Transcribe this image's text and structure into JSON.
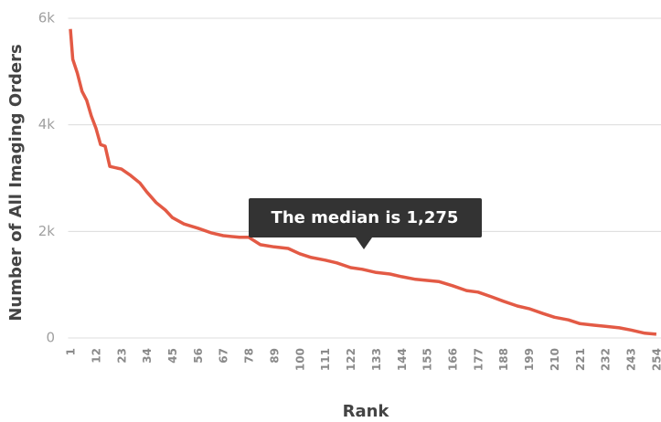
{
  "chart_data": {
    "type": "line",
    "x_label": "Rank",
    "y_label": "Number of All Imaging Orders",
    "annotation": "The median is 1,275",
    "color": "#e35a45",
    "grid": true,
    "x": [
      1,
      2,
      4,
      6,
      8,
      10,
      12,
      14,
      16,
      18,
      23,
      27,
      31,
      34,
      38,
      42,
      45,
      50,
      56,
      62,
      67,
      74,
      78,
      83,
      89,
      95,
      100,
      105,
      111,
      116,
      122,
      127,
      133,
      139,
      144,
      150,
      160,
      166,
      172,
      177,
      183,
      188,
      194,
      199,
      205,
      210,
      216,
      221,
      227,
      232,
      238,
      243,
      249,
      254
    ],
    "values": [
      5800,
      5230,
      4970,
      4630,
      4460,
      4170,
      3940,
      3630,
      3600,
      3220,
      3170,
      3050,
      2910,
      2740,
      2540,
      2400,
      2260,
      2140,
      2060,
      1970,
      1920,
      1890,
      1890,
      1750,
      1710,
      1680,
      1580,
      1510,
      1460,
      1410,
      1320,
      1290,
      1230,
      1200,
      1150,
      1100,
      1060,
      980,
      890,
      860,
      770,
      690,
      600,
      550,
      460,
      390,
      340,
      270,
      240,
      220,
      190,
      150,
      90,
      70
    ],
    "xlim": [
      0,
      256
    ],
    "xticks": [
      1,
      12,
      23,
      34,
      45,
      56,
      67,
      78,
      89,
      100,
      111,
      122,
      133,
      144,
      155,
      166,
      177,
      188,
      199,
      210,
      221,
      232,
      243,
      254
    ],
    "ylim": [
      0,
      6000
    ],
    "yticks": [
      0,
      {
        "value": 2000,
        "label": "2k"
      },
      {
        "value": 4000,
        "label": "4k"
      },
      {
        "value": 6000,
        "label": "6k"
      }
    ]
  }
}
